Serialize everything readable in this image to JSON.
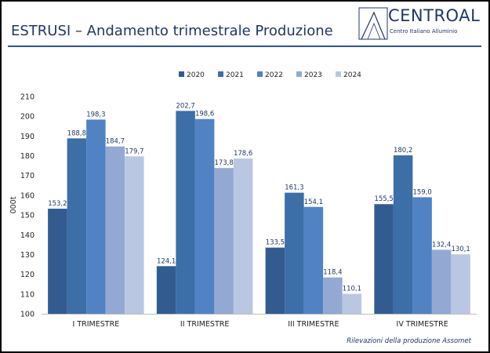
{
  "header": {
    "title": "ESTRUSI – Andamento trimestrale Produzione",
    "logo_name": "CENTROAL",
    "logo_subtitle": "Centro Italiano Alluminio"
  },
  "footer": {
    "source": "Rilevazioni della produzione Assomet"
  },
  "chart_data": {
    "type": "bar",
    "categories": [
      "I TRIMESTRE",
      "II TRIMESTRE",
      "III TRIMESTRE",
      "IV TRIMESTRE"
    ],
    "series": [
      {
        "name": "2020",
        "color": "#325b8f",
        "values": [
          153.2,
          124.1,
          133.5,
          155.5
        ],
        "labels": [
          "153,2",
          "124,1",
          "133,5",
          "155,5"
        ]
      },
      {
        "name": "2021",
        "color": "#3c6ea8",
        "values": [
          188.8,
          202.7,
          161.3,
          180.2
        ],
        "labels": [
          "188,8",
          "202,7",
          "161,3",
          "180,2"
        ]
      },
      {
        "name": "2022",
        "color": "#5182c4",
        "values": [
          198.3,
          198.6,
          154.1,
          159.0
        ],
        "labels": [
          "198,3",
          "198,6",
          "154,1",
          "159,0"
        ]
      },
      {
        "name": "2023",
        "color": "#93a9d3",
        "values": [
          184.7,
          173.8,
          118.4,
          132.4
        ],
        "labels": [
          "184,7",
          "173,8",
          "118,4",
          "132,4"
        ]
      },
      {
        "name": "2024",
        "color": "#bac7e2",
        "values": [
          179.7,
          178.6,
          110.1,
          130.1
        ],
        "labels": [
          "179,7",
          "178,6",
          "110,1",
          "130,1"
        ]
      }
    ],
    "ylabel": "000t",
    "ylim": [
      100,
      210
    ],
    "yticks": [
      100,
      110,
      120,
      130,
      140,
      150,
      160,
      170,
      180,
      190,
      200,
      210
    ],
    "grid": false,
    "legend_position": "top-center"
  }
}
